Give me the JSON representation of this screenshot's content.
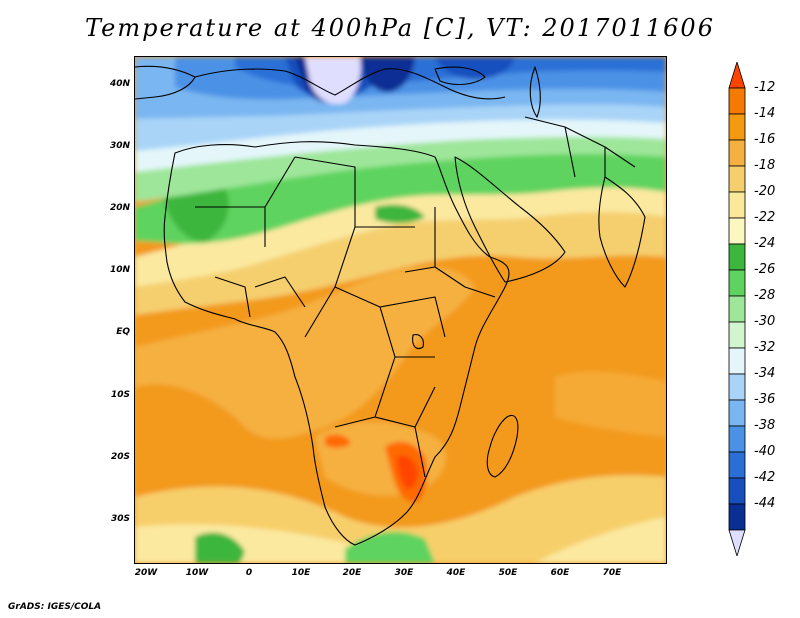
{
  "title": "Temperature at 400hPa [C], VT: 2017011606",
  "credit": "GrADS: IGES/COLA",
  "lat_labels": [
    "40N",
    "30N",
    "20N",
    "10N",
    "EQ",
    "10S",
    "20S",
    "30S"
  ],
  "lon_labels": [
    "20W",
    "10W",
    "0",
    "10E",
    "20E",
    "30E",
    "40E",
    "50E",
    "60E",
    "70E"
  ],
  "colorbar": {
    "labels": [
      "-12",
      "-14",
      "-16",
      "-18",
      "-20",
      "-22",
      "-24",
      "-26",
      "-28",
      "-30",
      "-32",
      "-34",
      "-36",
      "-38",
      "-40",
      "-42",
      "-44"
    ],
    "colors_top_to_bottom": [
      "#ff4400",
      "#f57a00",
      "#f59a10",
      "#f5b040",
      "#f5cf6e",
      "#fae99a",
      "#fbf7c0",
      "#3cb63c",
      "#5fd35f",
      "#9ee69a",
      "#d2f5d0",
      "#e4f6fa",
      "#a9d4f8",
      "#7ab6f1",
      "#4b92e6",
      "#2a6fd6",
      "#184fbe",
      "#0a2f94",
      "#e0deff"
    ]
  }
}
